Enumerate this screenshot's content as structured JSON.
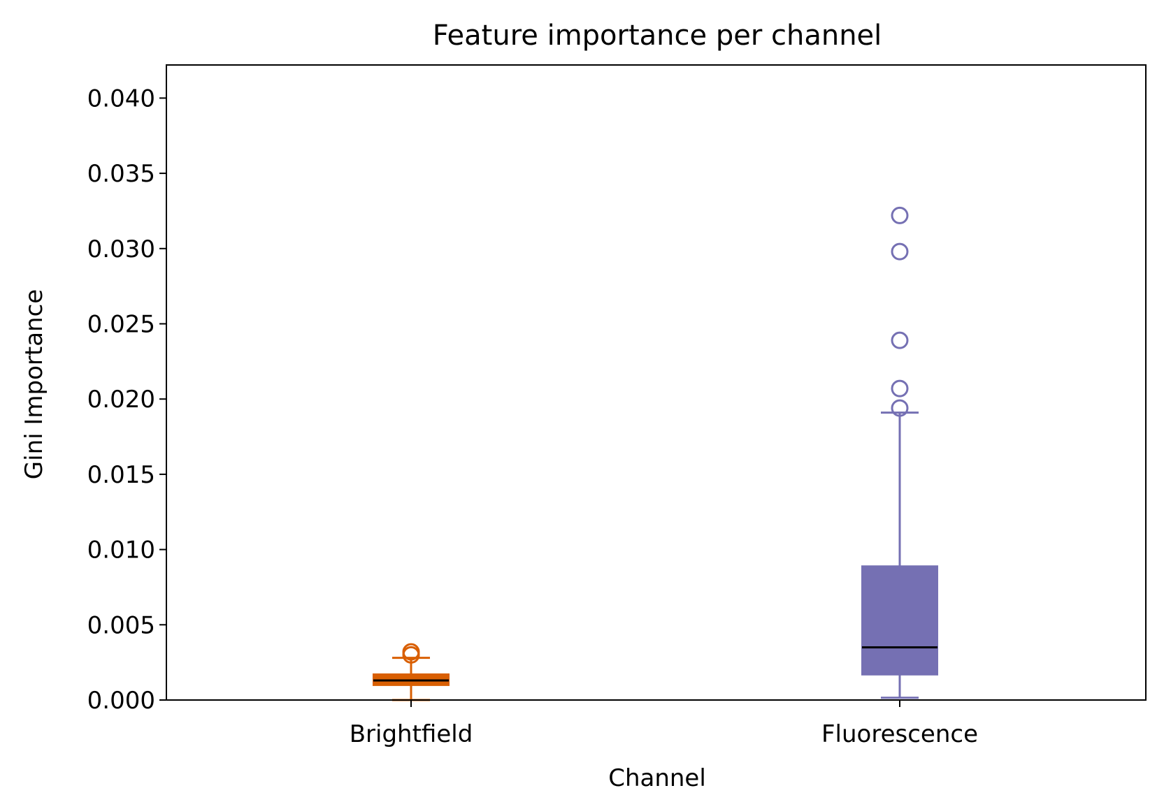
{
  "chart_data": {
    "type": "box",
    "title": "Feature importance per channel",
    "xlabel": "Channel",
    "ylabel": "Gini Importance",
    "categories": [
      "Brightfield",
      "Fluorescence"
    ],
    "ylim": [
      0,
      0.0422
    ],
    "yticks": [
      0.0,
      0.005,
      0.01,
      0.015,
      0.02,
      0.025,
      0.03,
      0.035,
      0.04
    ],
    "ytick_labels": [
      "0.000",
      "0.005",
      "0.010",
      "0.015",
      "0.020",
      "0.025",
      "0.030",
      "0.035",
      "0.040"
    ],
    "grid": false,
    "series": [
      {
        "category": "Brightfield",
        "color": "#d95f02",
        "whisker_low": 0.0,
        "q1": 0.00098,
        "median": 0.0013,
        "q3": 0.00172,
        "whisker_high": 0.0028,
        "outliers": [
          0.003,
          0.0032
        ]
      },
      {
        "category": "Fluorescence",
        "color": "#7570b3",
        "whisker_low": 0.00015,
        "q1": 0.00168,
        "median": 0.0035,
        "q3": 0.0089,
        "whisker_high": 0.0191,
        "outliers": [
          0.0194,
          0.0207,
          0.0239,
          0.0298,
          0.0322
        ]
      }
    ],
    "median_color": "#000000"
  }
}
